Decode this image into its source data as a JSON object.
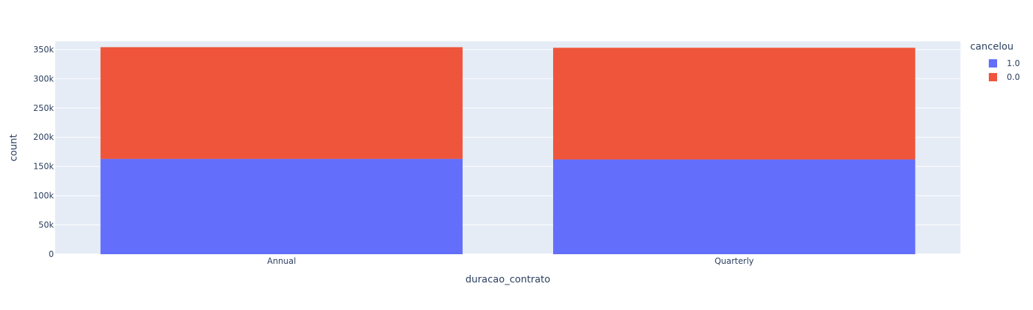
{
  "chart_data": {
    "type": "bar",
    "barmode": "stack",
    "categories": [
      "Annual",
      "Quarterly"
    ],
    "series": [
      {
        "name": "1.0",
        "values": [
          163000,
          162000
        ],
        "color": "#636efa"
      },
      {
        "name": "0.0",
        "values": [
          191000,
          191000
        ],
        "color": "#ef553b"
      }
    ],
    "xlabel": "duracao_contrato",
    "ylabel": "count",
    "ylim": [
      0,
      364000
    ],
    "yticks": [
      {
        "value": 0,
        "label": "0"
      },
      {
        "value": 50000,
        "label": "50k"
      },
      {
        "value": 100000,
        "label": "100k"
      },
      {
        "value": 150000,
        "label": "150k"
      },
      {
        "value": 200000,
        "label": "200k"
      },
      {
        "value": 250000,
        "label": "250k"
      },
      {
        "value": 300000,
        "label": "300k"
      },
      {
        "value": 350000,
        "label": "350k"
      }
    ],
    "legend": {
      "title": "cancelou",
      "position": "top-right"
    },
    "grid": true,
    "plot_background": "#e5ecf6"
  }
}
